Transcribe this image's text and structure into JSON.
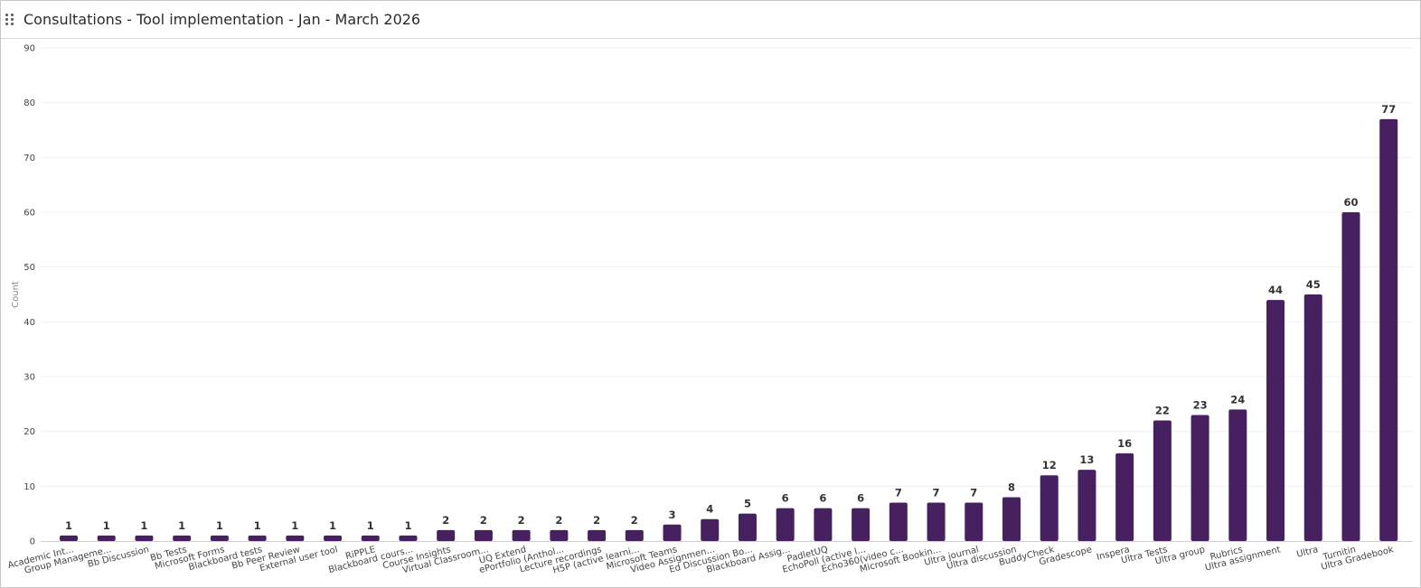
{
  "header": {
    "title": "Consultations - Tool implementation - Jan - March 2026",
    "drag_icon": "drag-handle-icon"
  },
  "colors": {
    "bar": "#46205f",
    "grid": "#f0f0f0",
    "axis": "#cfcfcf"
  },
  "chart_data": {
    "type": "bar",
    "title": "Consultations - Tool implementation - Jan - March 2026",
    "xlabel": "",
    "ylabel": "Count",
    "ylim": [
      0,
      90
    ],
    "yticks": [
      0,
      10,
      20,
      30,
      40,
      50,
      60,
      70,
      80,
      90
    ],
    "grid": true,
    "categories": [
      "Academic Int...",
      "Group Manageme...",
      "Bb Discussion",
      "Bb Tests",
      "Microsoft Forms",
      "Blackboard tests",
      "Bb Peer Review",
      "External user tool",
      "RiPPLE",
      "Blackboard cours...",
      "Course Insights",
      "Virtual Classroom...",
      "UQ Extend",
      "ePortfolio (Anthol...",
      "Lecture recordings",
      "H5P (active learni...",
      "Microsoft Teams",
      "Video Assignmen...",
      "Ed Discussion Bo...",
      "Blackboard Assig...",
      "PadletUQ",
      "EchoPoll (active l...",
      "Echo360(video c...",
      "Microsoft Bookin...",
      "Ultra journal",
      "Ultra discussion",
      "BuddyCheck",
      "Gradescope",
      "Inspera",
      "Ultra Tests",
      "Ultra group",
      "Rubrics",
      "Ultra assignment",
      "Ultra",
      "Turnitin",
      "Ultra Gradebook"
    ],
    "values": [
      1,
      1,
      1,
      1,
      1,
      1,
      1,
      1,
      1,
      1,
      2,
      2,
      2,
      2,
      2,
      2,
      3,
      4,
      5,
      6,
      6,
      6,
      7,
      7,
      7,
      8,
      12,
      13,
      16,
      22,
      23,
      24,
      44,
      45,
      60,
      77
    ]
  }
}
